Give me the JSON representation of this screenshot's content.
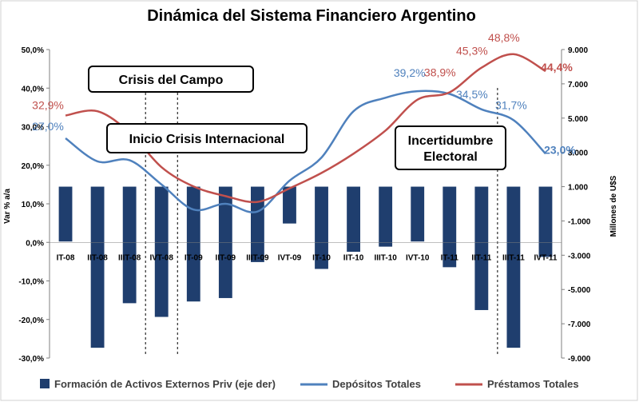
{
  "chart_data": {
    "type": "bar",
    "title": "Dinámica del Sistema Financiero Argentino",
    "ylabel_left": "Var % a/a",
    "ylabel_right": "Millones de U$S",
    "ylim_left": [
      -30,
      50
    ],
    "ylim_right": [
      -9000,
      9000
    ],
    "yticks_left": [
      "50,0%",
      "40,0%",
      "30,0%",
      "20,0%",
      "10,0%",
      "0,0%",
      "-10,0%",
      "-20,0%",
      "-30,0%"
    ],
    "yticks_right": [
      "9.000",
      "7.000",
      "5.000",
      "3.000",
      "1.000",
      "-1.000",
      "-3.000",
      "-5.000",
      "-7.000",
      "-9.000"
    ],
    "categories": [
      "IT-08",
      "IIT-08",
      "IIIT-08",
      "IVT-08",
      "IT-09",
      "IIT-09",
      "IIIT-09",
      "IVT-09",
      "IT-10",
      "IIT-10",
      "IIIT-10",
      "IVT-10",
      "IT-11",
      "IIT-11",
      "IIIT-11",
      "IVT-11"
    ],
    "grid": false,
    "legend_position": "bottom",
    "series": [
      {
        "name": "Formación de Activos Externos Priv (eje der)",
        "type": "bar",
        "axis": "right",
        "color": "#1f3e6e",
        "values": [
          -2200,
          -8400,
          -5800,
          -6600,
          -5700,
          -5500,
          -3400,
          -1150,
          -3800,
          -2800,
          -2500,
          -2200,
          -3700,
          -6200,
          -8400,
          -3100
        ]
      },
      {
        "name": "Depósitos Totales",
        "type": "line",
        "axis": "left",
        "color": "#4f81bd",
        "values": [
          27.0,
          21.0,
          21.3,
          15.0,
          8.5,
          10.0,
          8.0,
          16.0,
          22.0,
          34.0,
          37.5,
          39.2,
          38.5,
          34.5,
          31.7,
          23.0
        ]
      },
      {
        "name": "Préstamos Totales",
        "type": "line",
        "axis": "left",
        "color": "#c0504d",
        "values": [
          32.9,
          34.0,
          28.5,
          19.5,
          14.5,
          12.0,
          10.5,
          14.0,
          18.0,
          23.0,
          29.0,
          37.0,
          38.9,
          45.3,
          48.8,
          44.4
        ]
      }
    ],
    "data_labels": [
      {
        "series": 2,
        "index": 0,
        "text": "32,9%"
      },
      {
        "series": 1,
        "index": 0,
        "text": "27,0%"
      },
      {
        "series": 1,
        "index": 11,
        "text": "39,2%"
      },
      {
        "series": 1,
        "index": 13,
        "text": "34,5%"
      },
      {
        "series": 2,
        "index": 12,
        "text": "38,9%"
      },
      {
        "series": 2,
        "index": 13,
        "text": "45,3%"
      },
      {
        "series": 2,
        "index": 14,
        "text": "48,8%"
      },
      {
        "series": 1,
        "index": 14,
        "text": "31,7%"
      },
      {
        "series": 2,
        "index": 15,
        "text": "44,4%"
      },
      {
        "series": 1,
        "index": 15,
        "text": "23,0%"
      }
    ],
    "annotations": [
      {
        "text": [
          "Crisis del Campo"
        ],
        "marker_after_index": 2
      },
      {
        "text": [
          "Inicio Crisis Internacional"
        ],
        "marker_after_index": 3
      },
      {
        "text": [
          "Incertidumbre",
          "Electoral"
        ],
        "marker_after_index": 13
      }
    ]
  }
}
